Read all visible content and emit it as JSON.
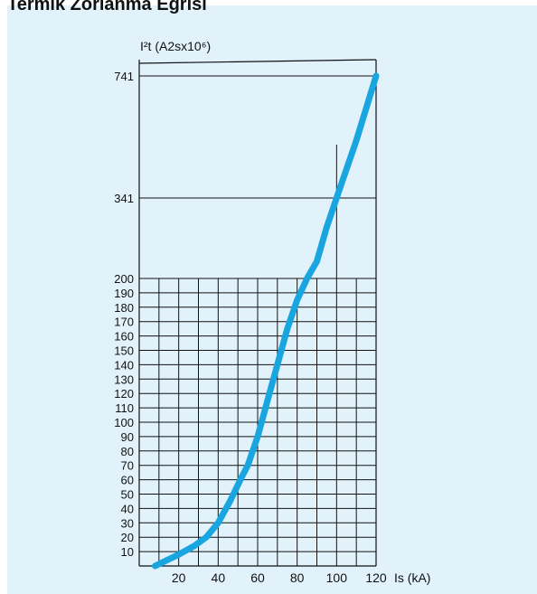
{
  "title": "Termik Zorlanma Eğrisi",
  "colors": {
    "background": "#e1f2fb",
    "curve": "#19a6e0",
    "grid": "#111111"
  },
  "chart_data": {
    "type": "line",
    "title": "Termik Zorlanma Eğrisi",
    "ylabel": "I²t (A2sx10⁶)",
    "xlabel": "Is (kA)",
    "xlim": [
      0,
      120
    ],
    "x_ticks": [
      "20",
      "40",
      "60",
      "80",
      "100",
      "120"
    ],
    "y_ticks_grid": [
      "200",
      "190",
      "180",
      "170",
      "160",
      "150",
      "140",
      "130",
      "120",
      "110",
      "100",
      "90",
      "80",
      "70",
      "60",
      "50",
      "40",
      "30",
      "20",
      "10"
    ],
    "y_ticks_upper": [
      "741",
      "341"
    ],
    "grid": true,
    "series": [
      {
        "x": [
          8,
          14,
          20,
          28,
          34,
          40,
          46,
          52,
          55,
          60,
          65,
          70,
          75,
          80,
          85,
          90,
          95,
          100,
          110,
          120
        ],
        "y": [
          0,
          4,
          8,
          14,
          20,
          30,
          45,
          62,
          70,
          90,
          115,
          140,
          165,
          185,
          200,
          230,
          290,
          341,
          530,
          741
        ]
      }
    ],
    "reference_x": 100,
    "reference_y": 341
  }
}
